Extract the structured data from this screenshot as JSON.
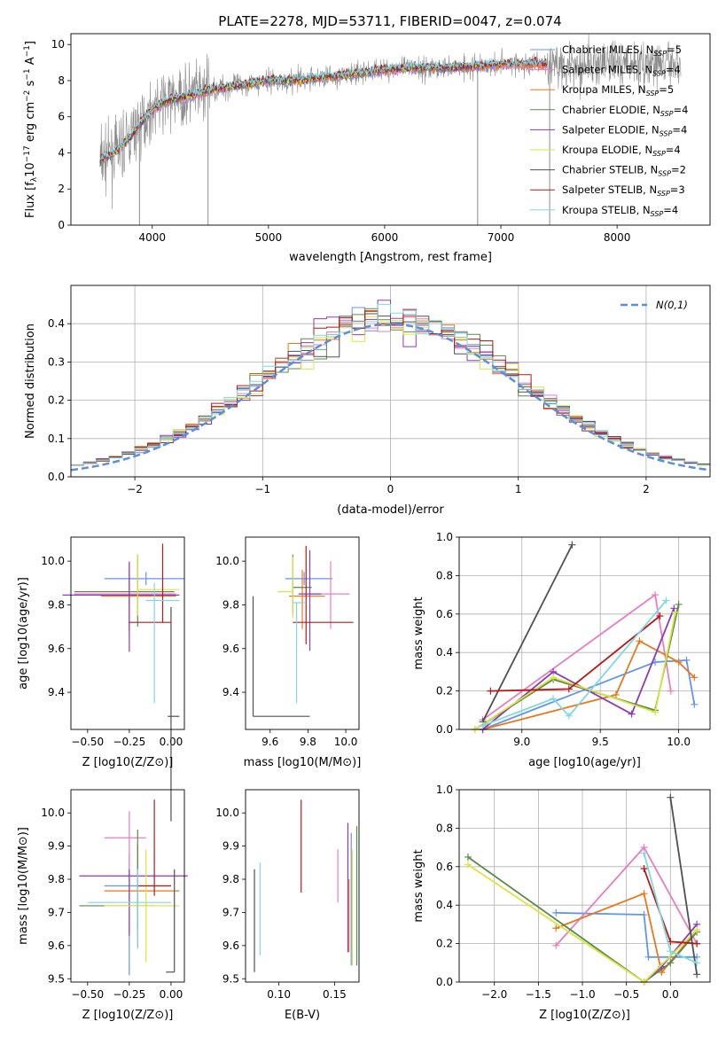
{
  "figure": {
    "title": "PLATE=2278, MJD=53711, FIBERID=0047, z=0.074"
  },
  "colors": {
    "series": [
      "#6495ed",
      "#e87ec0",
      "#e8781e",
      "#5c8a4a",
      "#8e3ab8",
      "#d8e640",
      "#505050",
      "#b81818",
      "#7fd8e0"
    ],
    "observed": "#8c8c8c",
    "grid": "#b0b0b0",
    "gauss": "#5c8fd6"
  },
  "chart_data": [
    {
      "id": "spectrum",
      "type": "line",
      "xlabel": "wavelength [Angstrom, rest frame]",
      "ylabel": "Flux [f_λ 10^-17 erg cm^-2 s^-1 A^-1]",
      "xlim": [
        3300,
        8800
      ],
      "ylim": [
        0,
        10.6
      ],
      "xticks": [
        4000,
        5000,
        6000,
        7000,
        8000
      ],
      "yticks": [
        0,
        2,
        4,
        6,
        8,
        10
      ],
      "grid": false,
      "legend_position": "right",
      "series": [
        {
          "name": "Chabrier MILES, N_SSP=5",
          "x_range": [
            3550,
            7400
          ]
        },
        {
          "name": "Salpeter MILES, N_SSP=4",
          "x_range": [
            3550,
            7400
          ]
        },
        {
          "name": "Kroupa MILES, N_SSP=5",
          "x_range": [
            3550,
            7400
          ]
        },
        {
          "name": "Chabrier ELODIE, N_SSP=4",
          "x_range": [
            3550,
            6800
          ]
        },
        {
          "name": "Salpeter ELODIE, N_SSP=4",
          "x_range": [
            3550,
            6800
          ]
        },
        {
          "name": "Kroupa ELODIE, N_SSP=4",
          "x_range": [
            3550,
            6800
          ]
        },
        {
          "name": "Chabrier STELIB, N_SSP=2",
          "x_range": [
            3550,
            7400
          ]
        },
        {
          "name": "Salpeter STELIB, N_SSP=3",
          "x_range": [
            3550,
            7400
          ]
        },
        {
          "name": "Kroupa STELIB, N_SSP=4",
          "x_range": [
            3550,
            7400
          ]
        }
      ],
      "continuum": {
        "x": [
          3550,
          3650,
          3700,
          3800,
          3900,
          4000,
          4100,
          4200,
          4300,
          4400,
          4500,
          4600,
          4800,
          5000,
          5200,
          5500,
          5800,
          6000,
          6200,
          6500,
          6800,
          7000,
          7200,
          7400
        ],
        "y": [
          3.6,
          3.9,
          4.1,
          4.8,
          5.6,
          6.4,
          6.8,
          7.0,
          7.1,
          7.3,
          7.5,
          7.6,
          7.8,
          8.0,
          8.0,
          8.2,
          8.4,
          8.6,
          8.7,
          8.7,
          8.8,
          8.9,
          8.9,
          8.9
        ]
      },
      "observed_range": [
        3550,
        8550
      ]
    },
    {
      "id": "residuals",
      "type": "bar",
      "xlabel": "(data-model)/error",
      "ylabel": "Normed distribution",
      "xlim": [
        -2.5,
        2.5
      ],
      "ylim": [
        0,
        0.5
      ],
      "xticks": [
        -2,
        -1,
        0,
        1,
        2
      ],
      "yticks": [
        0.0,
        0.1,
        0.2,
        0.3,
        0.4
      ],
      "grid": true,
      "legend_position": "top-right",
      "legend": "N(0,1)",
      "bin_width": 0.1,
      "bin_start": -2.5
    },
    {
      "id": "age-vs-Z",
      "type": "scatter",
      "xlabel": "Z [log10(Z/Z⊙)]",
      "ylabel": "age [log10(age/yr)]",
      "xlim": [
        -0.6,
        0.08
      ],
      "ylim": [
        9.23,
        10.11
      ],
      "xticks": [
        -0.5,
        -0.25,
        0.0
      ],
      "yticks": [
        9.4,
        9.6,
        9.8,
        10.0
      ],
      "errorbars": [
        {
          "x": -0.15,
          "xerr": [
            0.25,
            0.23
          ],
          "y": 9.92,
          "yerr": [
            0.03,
            0.03
          ]
        },
        {
          "x": -0.25,
          "xerr": [
            0.33,
            0.28
          ],
          "y": 9.85,
          "yerr": [
            0.17,
            0.15
          ]
        },
        {
          "x": -0.25,
          "xerr": [
            0.17,
            0.28
          ],
          "y": 9.84,
          "yerr": [
            0.15,
            0.12
          ]
        },
        {
          "x": -0.2,
          "xerr": [
            0.38,
            0.22
          ],
          "y": 9.86,
          "yerr": [
            0.16,
            0.17
          ]
        },
        {
          "x": -0.25,
          "xerr": [
            0.4,
            0.3
          ],
          "y": 9.845,
          "yerr": [
            0.26,
            0.15
          ]
        },
        {
          "x": -0.2,
          "xerr": [
            0.0,
            0.25
          ],
          "y": 9.87,
          "yerr": [
            0.12,
            0.16
          ]
        },
        {
          "x": 0.0,
          "xerr": [
            0.02,
            0.05
          ],
          "y": 9.29,
          "yerr": [
            0.48,
            0.5
          ]
        },
        {
          "x": -0.05,
          "xerr": [
            0.2,
            0.05
          ],
          "y": 9.72,
          "yerr": [
            0.0,
            0.36
          ]
        },
        {
          "x": -0.1,
          "xerr": [
            0.05,
            0.15
          ],
          "y": 9.82,
          "yerr": [
            0.47,
            0.08
          ]
        }
      ]
    },
    {
      "id": "age-vs-mass",
      "type": "scatter",
      "xlabel": "mass [log10(M/M⊙)]",
      "ylabel": "",
      "xlim": [
        9.47,
        10.07
      ],
      "ylim": [
        9.23,
        10.11
      ],
      "xticks": [
        9.6,
        9.8,
        10.0
      ],
      "yticks": [
        9.4,
        9.6,
        9.8,
        10.0
      ],
      "errorbars": [
        {
          "x": 9.78,
          "xerr": [
            0.1,
            0.15
          ],
          "y": 9.92,
          "yerr": [
            0.03,
            0.03
          ]
        },
        {
          "x": 9.92,
          "xerr": [
            0.11,
            0.1
          ],
          "y": 9.85,
          "yerr": [
            0.16,
            0.15
          ]
        },
        {
          "x": 9.77,
          "xerr": [
            0.07,
            0.12
          ],
          "y": 9.84,
          "yerr": [
            0.15,
            0.12
          ]
        },
        {
          "x": 9.72,
          "xerr": [
            0.0,
            0.1
          ],
          "y": 9.88,
          "yerr": [
            0.12,
            0.15
          ]
        },
        {
          "x": 9.81,
          "xerr": [
            0.06,
            0.06
          ],
          "y": 9.85,
          "yerr": [
            0.26,
            0.2
          ]
        },
        {
          "x": 9.72,
          "xerr": [
            0.08,
            0.0
          ],
          "y": 9.86,
          "yerr": [
            0.12,
            0.16
          ]
        },
        {
          "x": 9.51,
          "xerr": [
            0.0,
            0.3
          ],
          "y": 9.29,
          "yerr": [
            0.0,
            0.55
          ]
        },
        {
          "x": 9.79,
          "xerr": [
            0.07,
            0.25
          ],
          "y": 9.72,
          "yerr": [
            0.1,
            0.35
          ]
        },
        {
          "x": 9.74,
          "xerr": [
            0.02,
            0.05
          ],
          "y": 9.81,
          "yerr": [
            0.46,
            0.0
          ]
        }
      ]
    },
    {
      "id": "weight-vs-age",
      "type": "line",
      "xlabel": "age [log10(age/yr)]",
      "ylabel": "mass weight",
      "xlim": [
        8.6,
        10.2
      ],
      "ylim": [
        0,
        1.0
      ],
      "xticks": [
        9.0,
        9.5,
        10.0
      ],
      "yticks": [
        0.0,
        0.2,
        0.4,
        0.6,
        0.8,
        1.0
      ],
      "grid": true,
      "series": [
        {
          "x": [
            8.75,
            9.85,
            10.05,
            10.1
          ],
          "y": [
            0.0,
            0.35,
            0.36,
            0.13
          ]
        },
        {
          "x": [
            8.75,
            9.85,
            9.95
          ],
          "y": [
            0.05,
            0.7,
            0.2
          ]
        },
        {
          "x": [
            8.75,
            9.6,
            9.75,
            10.0,
            10.1
          ],
          "y": [
            0.0,
            0.18,
            0.46,
            0.35,
            0.27
          ]
        },
        {
          "x": [
            8.7,
            9.2,
            9.85,
            10.0
          ],
          "y": [
            0.0,
            0.26,
            0.1,
            0.65
          ]
        },
        {
          "x": [
            8.75,
            9.2,
            9.7,
            9.97
          ],
          "y": [
            0.0,
            0.3,
            0.08,
            0.63
          ]
        },
        {
          "x": [
            8.7,
            9.2,
            9.85,
            9.98
          ],
          "y": [
            0.0,
            0.27,
            0.09,
            0.61
          ]
        },
        {
          "x": [
            8.75,
            9.32
          ],
          "y": [
            0.04,
            0.96
          ]
        },
        {
          "x": [
            8.8,
            9.3,
            9.88
          ],
          "y": [
            0.2,
            0.21,
            0.59
          ]
        },
        {
          "x": [
            8.75,
            9.2,
            9.3,
            9.92
          ],
          "y": [
            0.02,
            0.16,
            0.07,
            0.67
          ]
        }
      ]
    },
    {
      "id": "mass-vs-Z",
      "type": "scatter",
      "xlabel": "Z [log10(Z/Z⊙)]",
      "ylabel": "mass [log10(M/M⊙)]",
      "xlim": [
        -0.6,
        0.08
      ],
      "ylim": [
        9.49,
        10.07
      ],
      "xticks": [
        -0.5,
        -0.25,
        0.0
      ],
      "yticks": [
        9.5,
        9.6,
        9.7,
        9.8,
        9.9,
        10.0
      ],
      "errorbars": [
        {
          "x": -0.25,
          "xerr": [
            0.15,
            0.25
          ],
          "y": 9.78,
          "yerr": [
            0.27,
            0.1
          ]
        },
        {
          "x": -0.25,
          "xerr": [
            0.15,
            0.1
          ],
          "y": 9.925,
          "yerr": [
            0.12,
            0.08
          ]
        },
        {
          "x": -0.2,
          "xerr": [
            0.2,
            0.25
          ],
          "y": 9.765,
          "yerr": [
            0.17,
            0.14
          ]
        },
        {
          "x": -0.2,
          "xerr": [
            0.35,
            0.1
          ],
          "y": 9.72,
          "yerr": [
            0.07,
            0.23
          ]
        },
        {
          "x": -0.25,
          "xerr": [
            0.3,
            0.35
          ],
          "y": 9.81,
          "yerr": [
            0.18,
            0.02
          ]
        },
        {
          "x": -0.15,
          "xerr": [
            0.25,
            0.2
          ],
          "y": 9.72,
          "yerr": [
            0.17,
            0.17
          ]
        },
        {
          "x": 0.02,
          "xerr": [
            0.05,
            0.0
          ],
          "y": 9.52,
          "yerr": [
            0.0,
            0.31
          ]
        },
        {
          "x": -0.1,
          "xerr": [
            0.1,
            0.1
          ],
          "y": 9.78,
          "yerr": [
            0.03,
            0.26
          ]
        },
        {
          "x": -0.2,
          "xerr": [
            0.3,
            0.2
          ],
          "y": 9.73,
          "yerr": [
            0.14,
            0.1
          ]
        }
      ]
    },
    {
      "id": "mass-vs-EBV",
      "type": "scatter",
      "xlabel": "E(B-V)",
      "ylabel": "",
      "xlim": [
        0.07,
        0.172
      ],
      "ylim": [
        9.49,
        10.07
      ],
      "xticks": [
        0.1,
        0.15
      ],
      "yticks": [
        9.5,
        9.6,
        9.7,
        9.8,
        9.9,
        10.0
      ],
      "errorbars": [
        {
          "x": 0.165,
          "xerr": [
            0,
            0
          ],
          "y": 9.72,
          "yerr": [
            0.18,
            0.22
          ]
        },
        {
          "x": 0.153,
          "xerr": [
            0,
            0
          ],
          "y": 9.82,
          "yerr": [
            0.09,
            0.07
          ]
        },
        {
          "x": 0.163,
          "xerr": [
            0,
            0
          ],
          "y": 9.7,
          "yerr": [
            0.12,
            0.1
          ]
        },
        {
          "x": 0.17,
          "xerr": [
            0,
            0
          ],
          "y": 9.8,
          "yerr": [
            0.26,
            0.16
          ]
        },
        {
          "x": 0.162,
          "xerr": [
            0,
            0
          ],
          "y": 9.8,
          "yerr": [
            0.22,
            0.17
          ]
        },
        {
          "x": 0.166,
          "xerr": [
            0,
            0
          ],
          "y": 9.72,
          "yerr": [
            0.18,
            0.17
          ]
        },
        {
          "x": 0.078,
          "xerr": [
            0,
            0
          ],
          "y": 9.67,
          "yerr": [
            0.15,
            0.16
          ]
        },
        {
          "x": 0.12,
          "xerr": [
            0,
            0
          ],
          "y": 9.9,
          "yerr": [
            0.14,
            0.14
          ]
        },
        {
          "x": 0.083,
          "xerr": [
            0,
            0
          ],
          "y": 9.71,
          "yerr": [
            0.14,
            0.14
          ]
        }
      ]
    },
    {
      "id": "weight-vs-Z",
      "type": "line",
      "xlabel": "Z [log10(Z/Z⊙)]",
      "ylabel": "mass weight",
      "xlim": [
        -2.4,
        0.45
      ],
      "ylim": [
        0,
        1.0
      ],
      "xticks": [
        -2.0,
        -1.5,
        -1.0,
        -0.5,
        0.0
      ],
      "yticks": [
        0.0,
        0.2,
        0.4,
        0.6,
        0.8,
        1.0
      ],
      "grid": true,
      "series": [
        {
          "x": [
            -1.3,
            -0.3,
            -0.25,
            0.3
          ],
          "y": [
            0.36,
            0.35,
            0.13,
            0.13
          ]
        },
        {
          "x": [
            -1.3,
            -0.3,
            0.3
          ],
          "y": [
            0.19,
            0.7,
            0.2
          ]
        },
        {
          "x": [
            -1.3,
            -0.3,
            -0.1,
            0.3
          ],
          "y": [
            0.28,
            0.46,
            0.05,
            0.27
          ]
        },
        {
          "x": [
            -2.3,
            -0.3,
            0.0,
            0.3
          ],
          "y": [
            0.65,
            0.0,
            0.1,
            0.26
          ]
        },
        {
          "x": [
            -0.3,
            -0.1,
            0.3
          ],
          "y": [
            0.0,
            0.08,
            0.3
          ]
        },
        {
          "x": [
            -2.3,
            -0.3,
            0.3
          ],
          "y": [
            0.61,
            0.0,
            0.27
          ]
        },
        {
          "x": [
            0.0,
            0.3
          ],
          "y": [
            0.96,
            0.04
          ]
        },
        {
          "x": [
            -0.3,
            0.0,
            0.3
          ],
          "y": [
            0.59,
            0.21,
            0.2
          ]
        },
        {
          "x": [
            -0.3,
            0.0,
            0.3
          ],
          "y": [
            0.67,
            0.16,
            0.1
          ]
        }
      ]
    }
  ]
}
